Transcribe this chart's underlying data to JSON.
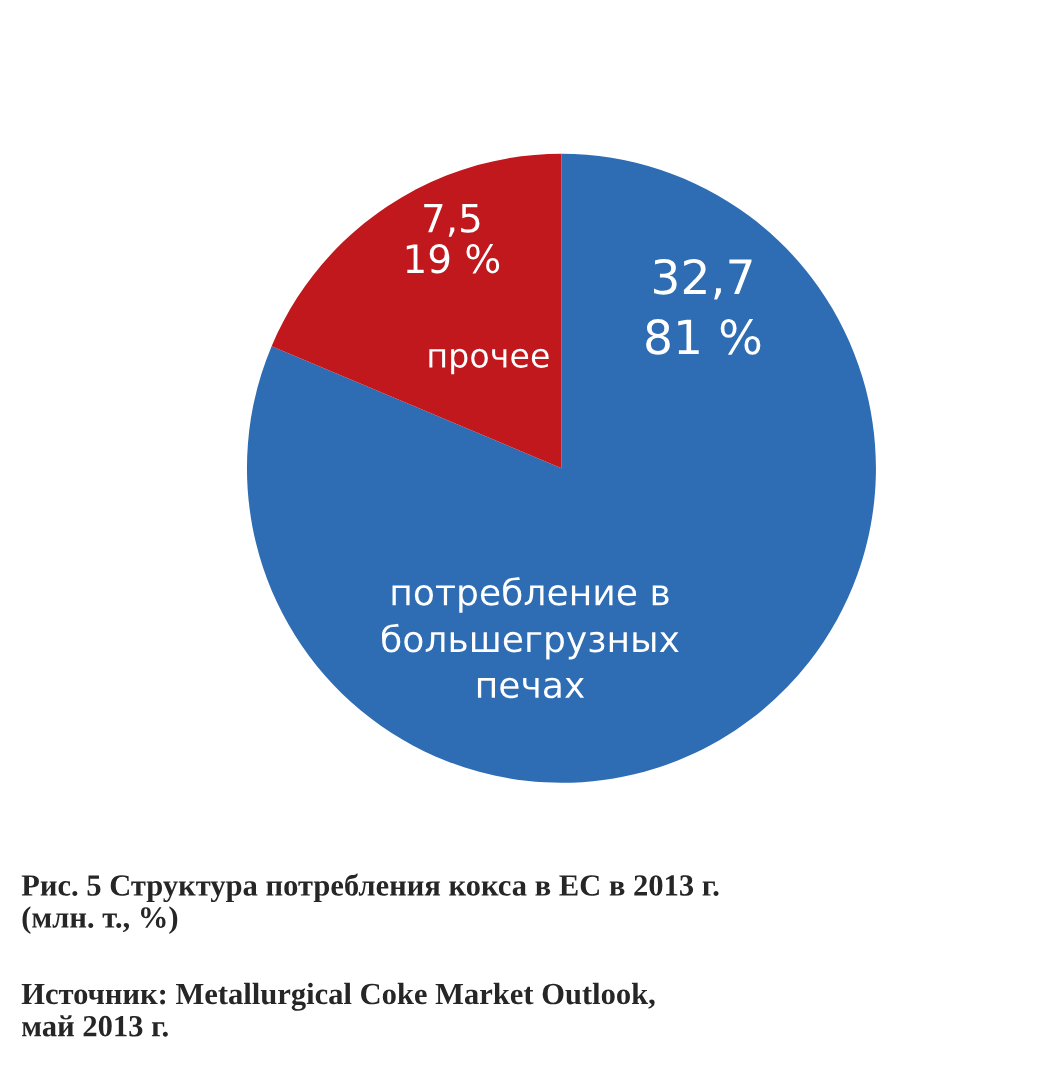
{
  "chart_data": {
    "type": "pie",
    "categories": [
      "потребление в\nбольшегрузных\nпечах",
      "прочее"
    ],
    "values": [
      32.7,
      7.5
    ],
    "value_labels": [
      "32,7\n81 %",
      "7,5\n19 %"
    ],
    "colors": [
      "#2e6db4",
      "#c0181c"
    ],
    "annotations": [
      "Рис. 5 Структура потребления кокса в ЕС в 2013 г.\n(млн. т., %)",
      "Источник: Metallurgical Coke Market Outlook,\nмай 2013 г."
    ]
  }
}
